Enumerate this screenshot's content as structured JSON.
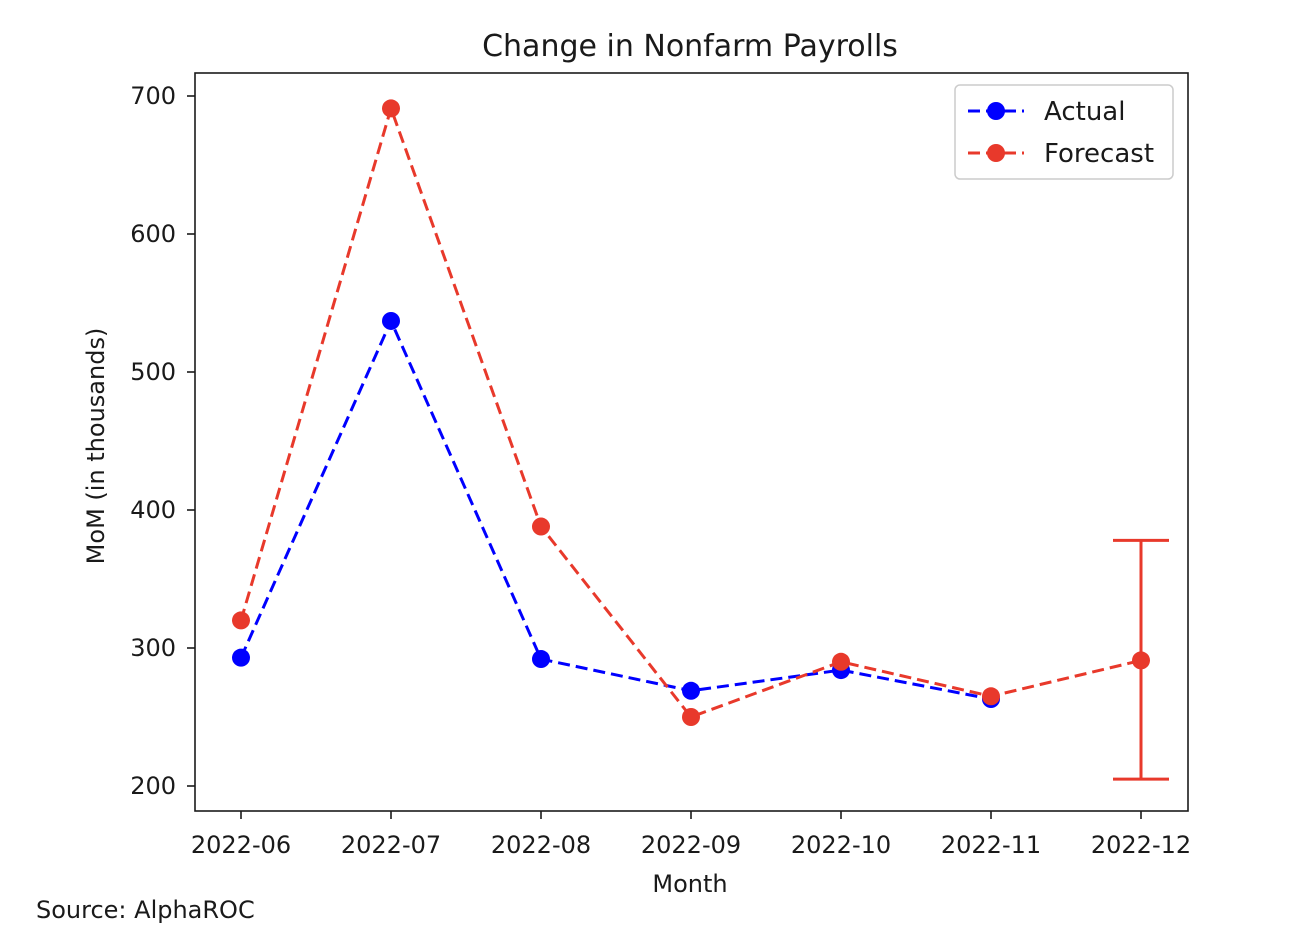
{
  "chart_data": {
    "type": "line",
    "title": "Change in Nonfarm Payrolls",
    "xlabel": "Month",
    "ylabel": "MoM (in thousands)",
    "categories": [
      "2022-06",
      "2022-07",
      "2022-08",
      "2022-09",
      "2022-10",
      "2022-11",
      "2022-12"
    ],
    "ylim": [
      180,
      710
    ],
    "yticks": [
      200,
      300,
      400,
      500,
      600,
      700
    ],
    "grid": false,
    "legend_position": "top-right",
    "series": [
      {
        "name": "Actual",
        "color": "#0000ff",
        "line_style": "dashed",
        "marker": "circle",
        "values": [
          293,
          537,
          292,
          269,
          284,
          263,
          null
        ]
      },
      {
        "name": "Forecast",
        "color": "#e8392b",
        "line_style": "dashed",
        "marker": "circle",
        "values": [
          320,
          691,
          388,
          250,
          290,
          265,
          291
        ],
        "error_bars": [
          {
            "category": "2022-12",
            "low": 205,
            "high": 378
          }
        ]
      }
    ]
  },
  "footer": {
    "source": "Source: AlphaROC"
  }
}
